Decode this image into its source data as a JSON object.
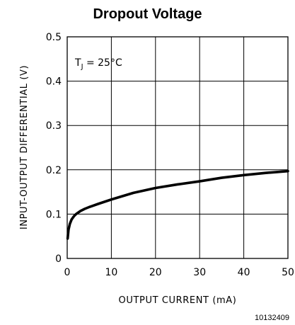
{
  "chart_data": {
    "type": "line",
    "title": "Dropout Voltage",
    "xlabel": "OUTPUT CURRENT (mA)",
    "ylabel": "INPUT-OUTPUT DIFFERENTIAL (V)",
    "xlim": [
      0,
      50
    ],
    "ylim": [
      0,
      0.5
    ],
    "xticks": [
      "0",
      "10",
      "20",
      "30",
      "40",
      "50"
    ],
    "yticks": [
      "0",
      "0.1",
      "0.2",
      "0.3",
      "0.4",
      "0.5"
    ],
    "grid": true,
    "annotation": {
      "symbol": "T",
      "subscript": "J",
      "text": " = 25°C"
    },
    "series": [
      {
        "x": [
          0.1,
          0.3,
          0.6,
          1,
          1.5,
          2,
          3,
          4,
          5,
          7,
          10,
          15,
          20,
          25,
          30,
          35,
          40,
          45,
          50
        ],
        "y": [
          0.045,
          0.065,
          0.078,
          0.088,
          0.095,
          0.1,
          0.107,
          0.112,
          0.116,
          0.123,
          0.133,
          0.148,
          0.159,
          0.167,
          0.174,
          0.182,
          0.188,
          0.193,
          0.197
        ]
      }
    ],
    "figure_code": "10132409"
  },
  "colors": {
    "line": "#000000",
    "grid": "#000000",
    "background": "#ffffff"
  }
}
